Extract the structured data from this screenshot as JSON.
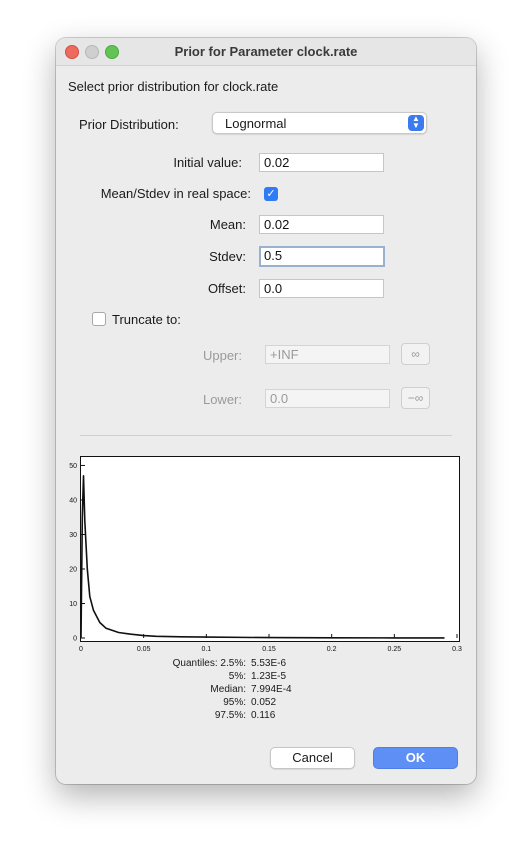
{
  "window": {
    "title": "Prior for Parameter clock.rate"
  },
  "heading": "Select prior distribution for clock.rate",
  "prior": {
    "label": "Prior Distribution:",
    "selected": "Lognormal"
  },
  "params": {
    "initial_label": "Initial value:",
    "initial_value": "0.02",
    "realspace_label": "Mean/Stdev in real space:",
    "realspace_checked": true,
    "mean_label": "Mean:",
    "mean_value": "0.02",
    "stdev_label": "Stdev:",
    "stdev_value": "0.5",
    "offset_label": "Offset:",
    "offset_value": "0.0"
  },
  "truncate": {
    "label": "Truncate to:",
    "checked": false,
    "upper_label": "Upper:",
    "upper_value": "+INF",
    "upper_button": "∞",
    "lower_label": "Lower:",
    "lower_value": "0.0",
    "lower_button": "−∞"
  },
  "chart_data": {
    "type": "line",
    "x": [
      0.001,
      0.002,
      0.003,
      0.005,
      0.007,
      0.01,
      0.015,
      0.02,
      0.03,
      0.04,
      0.05,
      0.06,
      0.08,
      0.1,
      0.15,
      0.2,
      0.25,
      0.29
    ],
    "y": [
      35,
      47,
      34,
      20,
      12,
      8,
      4.5,
      2.8,
      1.6,
      1.1,
      0.7,
      0.5,
      0.35,
      0.25,
      0.12,
      0.07,
      0.04,
      0.02
    ],
    "xlim": [
      0,
      0.3
    ],
    "ylim": [
      0,
      51
    ],
    "xticks": [
      "0",
      "0.05",
      "0.1",
      "0.15",
      "0.2",
      "0.25",
      "0.3"
    ],
    "yticks": [
      "0",
      "10",
      "20",
      "30",
      "40",
      "50"
    ],
    "line_color": "#111111"
  },
  "quantiles": [
    {
      "label": "Quantiles: 2.5%:",
      "value": "5.53E-6"
    },
    {
      "label": "5%:",
      "value": "1.23E-5"
    },
    {
      "label": "Median:",
      "value": "7.994E-4"
    },
    {
      "label": "95%:",
      "value": "0.052"
    },
    {
      "label": "97.5%:",
      "value": "0.116"
    }
  ],
  "buttons": {
    "cancel": "Cancel",
    "ok": "OK"
  }
}
